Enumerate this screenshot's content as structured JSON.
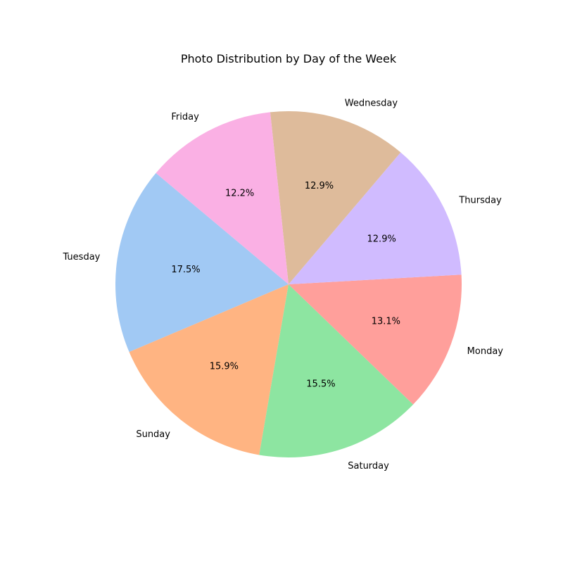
{
  "chart_data": {
    "type": "pie",
    "title": "Photo Distribution by Day of the Week",
    "start_angle_deg": 140,
    "direction": "counterclockwise",
    "slices": [
      {
        "label": "Tuesday",
        "percent": 17.5,
        "percent_label": "17.5%",
        "color": "#a1c9f4"
      },
      {
        "label": "Sunday",
        "percent": 15.9,
        "percent_label": "15.9%",
        "color": "#ffb482"
      },
      {
        "label": "Saturday",
        "percent": 15.5,
        "percent_label": "15.5%",
        "color": "#8de5a1"
      },
      {
        "label": "Monday",
        "percent": 13.1,
        "percent_label": "13.1%",
        "color": "#ff9f9b"
      },
      {
        "label": "Thursday",
        "percent": 12.9,
        "percent_label": "12.9%",
        "color": "#d0bbff"
      },
      {
        "label": "Wednesday",
        "percent": 12.9,
        "percent_label": "12.9%",
        "color": "#debb9b"
      },
      {
        "label": "Friday",
        "percent": 12.2,
        "percent_label": "12.2%",
        "color": "#fab0e4"
      }
    ]
  }
}
